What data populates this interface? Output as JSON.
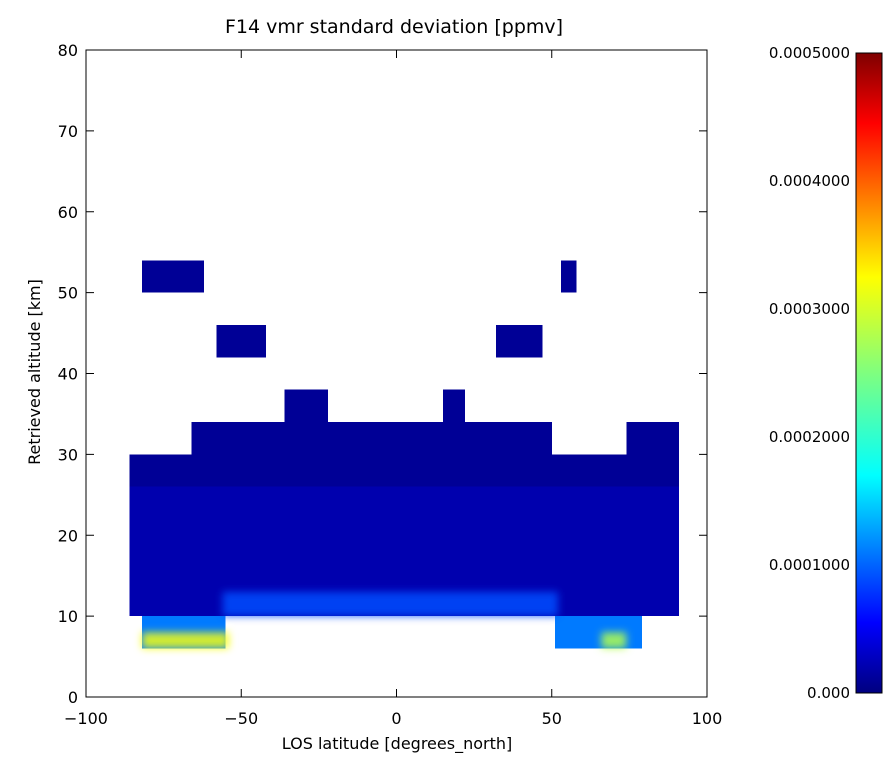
{
  "chart_data": {
    "type": "heatmap",
    "title": "F14 vmr standard deviation [ppmv]",
    "xlabel": "LOS latitude [degrees_north]",
    "ylabel": "Retrieved altitude [km]",
    "xlim": [
      -100,
      100
    ],
    "ylim": [
      0,
      80
    ],
    "x_ticks": [
      "−100",
      "−50",
      "0",
      "50",
      "100"
    ],
    "x_tick_values": [
      -100,
      -50,
      0,
      50,
      100
    ],
    "y_ticks": [
      "0",
      "10",
      "20",
      "30",
      "40",
      "50",
      "60",
      "70",
      "80"
    ],
    "y_tick_values": [
      0,
      10,
      20,
      30,
      40,
      50,
      60,
      70,
      80
    ],
    "colorbar": {
      "min": 0,
      "max": 0.0005,
      "colormap": "jet",
      "tick_labels": [
        "0.000",
        "0.0001000",
        "0.0002000",
        "0.0003000",
        "0.0004000",
        "0.0005000"
      ],
      "tick_values": [
        0,
        0.0001,
        0.0002,
        0.0003,
        0.0004,
        0.0005
      ]
    },
    "cells": [
      {
        "lat": [
          -82,
          -62
        ],
        "alt": [
          50,
          54
        ],
        "value": 1e-05
      },
      {
        "lat": [
          53,
          58
        ],
        "alt": [
          50,
          54
        ],
        "value": 1e-05
      },
      {
        "lat": [
          -58,
          -42
        ],
        "alt": [
          42,
          46
        ],
        "value": 1e-05
      },
      {
        "lat": [
          32,
          47
        ],
        "alt": [
          42,
          46
        ],
        "value": 1e-05
      },
      {
        "lat": [
          -36,
          -22
        ],
        "alt": [
          34,
          38
        ],
        "value": 1e-05
      },
      {
        "lat": [
          15,
          22
        ],
        "alt": [
          34,
          38
        ],
        "value": 1e-05
      },
      {
        "lat": [
          -66,
          50
        ],
        "alt": [
          30,
          34
        ],
        "value": 1e-05
      },
      {
        "lat": [
          74,
          91
        ],
        "alt": [
          30,
          34
        ],
        "value": 1e-05
      },
      {
        "lat": [
          -86,
          91
        ],
        "alt": [
          26,
          30
        ],
        "value": 1e-05
      },
      {
        "lat": [
          -86,
          91
        ],
        "alt": [
          10,
          26
        ],
        "value": 2e-05
      },
      {
        "lat": [
          -82,
          -55
        ],
        "alt": [
          6,
          10
        ],
        "value": 0.00011
      },
      {
        "lat": [
          51,
          79
        ],
        "alt": [
          6,
          10
        ],
        "value": 0.00011
      }
    ],
    "hot_spots": [
      {
        "lat": [
          -56,
          52
        ],
        "alt": [
          10,
          13
        ],
        "value": 9e-05
      },
      {
        "lat": [
          -82,
          -54
        ],
        "alt": [
          6,
          8
        ],
        "value": 0.00032
      },
      {
        "lat": [
          66,
          74
        ],
        "alt": [
          6,
          8
        ],
        "value": 0.00028
      }
    ]
  }
}
